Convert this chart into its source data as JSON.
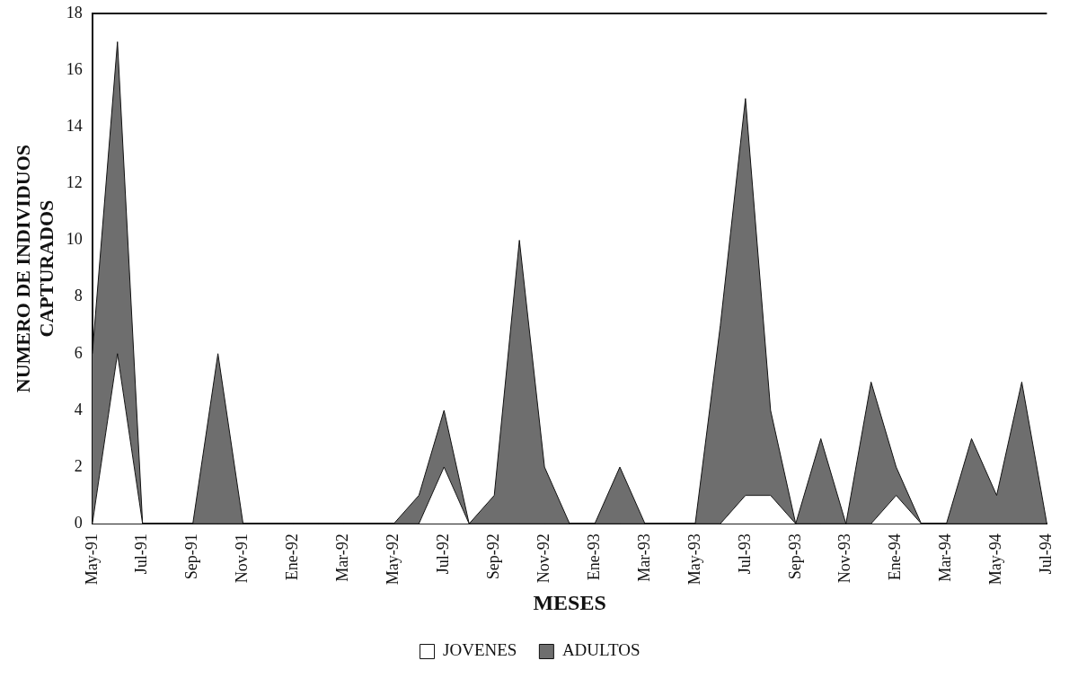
{
  "chart_data": {
    "type": "area",
    "stacked": true,
    "xlabel": "MESES",
    "ylabel": "NUMERO DE INDIVIDUOS CAPTURADOS",
    "categories": [
      "May-91",
      null,
      "Jul-91",
      null,
      "Sep-91",
      null,
      "Nov-91",
      null,
      "Ene-92",
      null,
      "Mar-92",
      null,
      "May-92",
      null,
      "Jul-92",
      null,
      "Sep-92",
      null,
      "Nov-92",
      null,
      "Ene-93",
      null,
      "Mar-93",
      null,
      "May-93",
      null,
      "Jul-93",
      null,
      "Sep-93",
      null,
      "Nov-93",
      null,
      "Ene-94",
      null,
      "Mar-94",
      null,
      "May-94",
      null,
      "Jul-94"
    ],
    "series": [
      {
        "name": "JOVENES",
        "color": "#ffffff",
        "values": [
          0,
          6,
          0,
          0,
          0,
          0,
          0,
          0,
          0,
          0,
          0,
          0,
          0,
          0,
          2,
          0,
          0,
          0,
          0,
          0,
          0,
          0,
          0,
          0,
          0,
          0,
          1,
          1,
          0,
          0,
          0,
          0,
          1,
          0,
          0,
          0,
          0,
          0,
          0
        ]
      },
      {
        "name": "ADULTOS",
        "color": "#6e6e6e",
        "values": [
          6,
          11,
          0,
          0,
          0,
          6,
          0,
          0,
          0,
          0,
          0,
          0,
          0,
          1,
          2,
          0,
          1,
          10,
          2,
          0,
          0,
          2,
          0,
          0,
          0,
          7,
          14,
          3,
          0,
          3,
          0,
          5,
          1,
          0,
          0,
          3,
          1,
          5,
          0
        ]
      }
    ],
    "ylim": [
      0,
      18
    ],
    "yticks": [
      0,
      2,
      4,
      6,
      8,
      10,
      12,
      14,
      16,
      18
    ],
    "grid": false,
    "legend": "bottom",
    "marker": "none",
    "line_style": "solid"
  }
}
